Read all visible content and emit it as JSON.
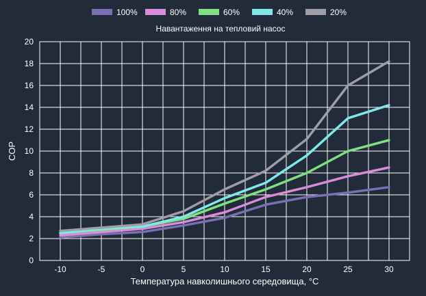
{
  "chart_data": {
    "type": "line",
    "xlabel": "Температура навколишнього середовища, °C",
    "ylabel": "COP",
    "legend_title": "Навантаження на тепловий насос",
    "legend_position": "top",
    "grid": true,
    "xlim": [
      -12.5,
      32.5
    ],
    "ylim": [
      0,
      20
    ],
    "x_ticks": [
      -10,
      -5,
      0,
      5,
      10,
      15,
      20,
      25,
      30
    ],
    "y_ticks": [
      0,
      2,
      4,
      6,
      8,
      10,
      12,
      14,
      16,
      18,
      20
    ],
    "x": [
      -10,
      -5,
      0,
      5,
      10,
      15,
      20,
      25,
      30
    ],
    "series": [
      {
        "name": "100%",
        "color": "#7a6fb3",
        "values": [
          2.1,
          2.4,
          2.6,
          3.2,
          3.9,
          5.1,
          5.8,
          6.2,
          6.7
        ]
      },
      {
        "name": "80%",
        "color": "#d98cd9",
        "values": [
          2.3,
          2.6,
          2.9,
          3.5,
          4.4,
          5.8,
          6.7,
          7.7,
          8.5
        ]
      },
      {
        "name": "60%",
        "color": "#80e080",
        "values": [
          2.5,
          2.8,
          3.1,
          3.8,
          5.2,
          6.5,
          8.0,
          10.0,
          11.0
        ]
      },
      {
        "name": "40%",
        "color": "#80e8e8",
        "values": [
          2.5,
          2.9,
          3.1,
          4.0,
          5.7,
          7.1,
          9.6,
          13.0,
          14.2
        ]
      },
      {
        "name": "20%",
        "color": "#a09ca8",
        "values": [
          2.7,
          3.0,
          3.3,
          4.5,
          6.5,
          8.2,
          11.1,
          16.0,
          18.2
        ]
      }
    ]
  }
}
